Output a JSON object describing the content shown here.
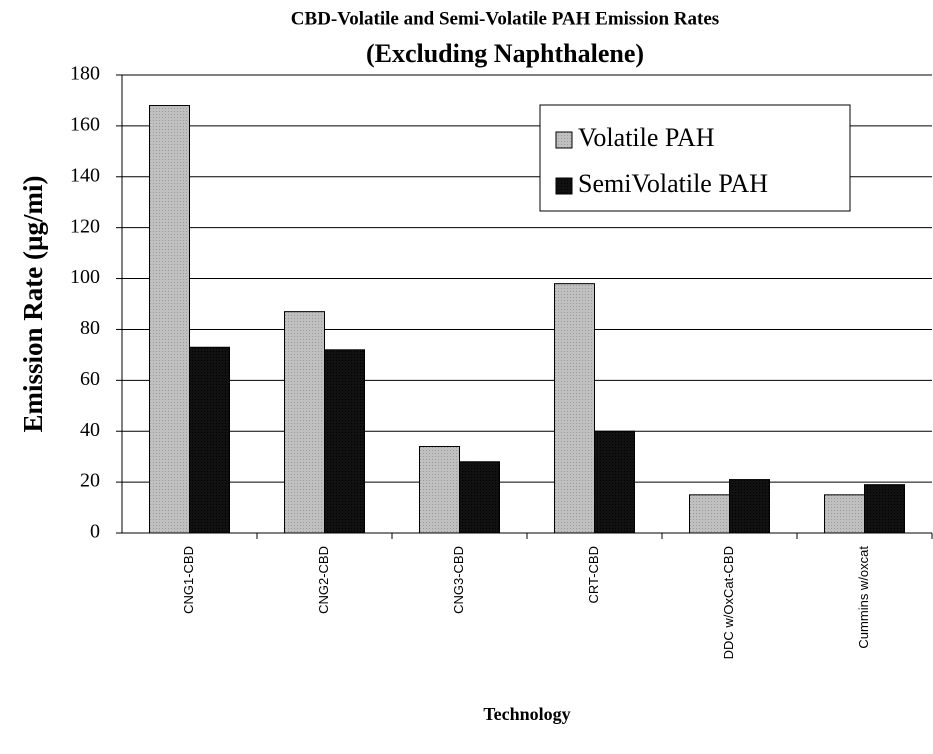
{
  "chart_data": {
    "type": "bar",
    "title": "CBD-Volatile and Semi-Volatile PAH Emission Rates",
    "subtitle": "(Excluding Naphthalene)",
    "y_label": "Emission Rate (µg/mi)",
    "x_label": "Technology",
    "categories": [
      "CNG1-CBD",
      "CNG2-CBD",
      "CNG3-CBD",
      "CRT-CBD",
      "DDC w/OxCat-CBD",
      "Cummins w/oxcat"
    ],
    "series": [
      {
        "name": "Volatile PAH",
        "color": "#c0c0c0",
        "values": [
          168,
          87,
          34,
          98,
          15,
          15
        ]
      },
      {
        "name": "SemiVolatile PAH",
        "color": "#111111",
        "values": [
          73,
          72,
          28,
          40,
          21,
          19
        ]
      }
    ],
    "ylim": [
      0,
      180
    ],
    "yticks": [
      0,
      20,
      40,
      60,
      80,
      100,
      120,
      140,
      160,
      180
    ],
    "grid": true,
    "legend": "upper right"
  }
}
